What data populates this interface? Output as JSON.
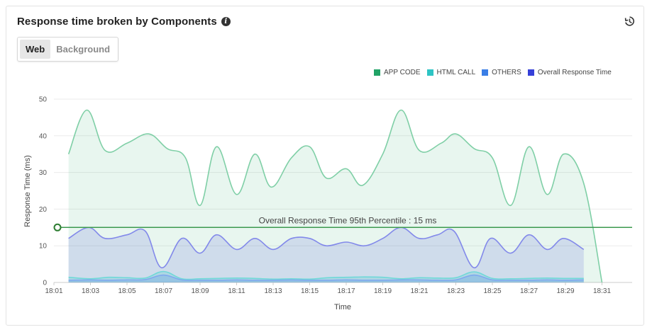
{
  "header": {
    "title": "Response time broken by Components",
    "info_icon": "info-icon",
    "history_icon": "history-icon"
  },
  "tabs": [
    {
      "label": "Web",
      "active": true
    },
    {
      "label": "Background",
      "active": false
    }
  ],
  "colors": {
    "app_code": "#21a366",
    "html_call": "#2ec4c4",
    "others": "#3a7ee6",
    "overall": "#3640d8",
    "percentile_line": "#3c9a4f"
  },
  "chart_data": {
    "type": "area",
    "title": "",
    "xlabel": "Time",
    "ylabel": "Response Time (ms)",
    "ylim": [
      0,
      50
    ],
    "yticks": [
      0,
      10,
      20,
      30,
      40,
      50
    ],
    "xticks": [
      "18:01",
      "18:03",
      "18:05",
      "18:07",
      "18:09",
      "18:11",
      "18:13",
      "18:15",
      "18:17",
      "18:19",
      "18:21",
      "18:23",
      "18:25",
      "18:27",
      "18:29",
      "18:31"
    ],
    "xlim_minutes": [
      1,
      31
    ],
    "grid": true,
    "legend": {
      "position": "top-right",
      "entries": [
        "APP CODE",
        "HTML CALL",
        "OTHERS",
        "Overall Response Time"
      ]
    },
    "series": [
      {
        "name": "APP CODE",
        "color": "#21a366",
        "x": [
          1.8,
          2.8,
          3.8,
          5.0,
          6.2,
          7.2,
          8.2,
          9.0,
          9.9,
          11.0,
          12.0,
          12.9,
          14.0,
          15.0,
          15.9,
          17.0,
          17.9,
          19.0,
          20.0,
          21.0,
          22.2,
          23.0,
          24.0,
          25.0,
          26.0,
          27.0,
          28.0,
          28.9,
          30.0,
          31.0
        ],
        "values": [
          35,
          47,
          36,
          38,
          40.5,
          36.5,
          34,
          21,
          37,
          24,
          35,
          26,
          34,
          37,
          28.5,
          31,
          26.5,
          35,
          47,
          36,
          38,
          40.5,
          36.5,
          34,
          21,
          37,
          24,
          35,
          27,
          0
        ]
      },
      {
        "name": "Overall Response Time",
        "color": "#3640d8",
        "x": [
          1.8,
          2.9,
          3.8,
          5.0,
          6.0,
          6.9,
          8.0,
          9.0,
          9.9,
          11.0,
          12.0,
          13.0,
          14.0,
          15.0,
          15.9,
          17.0,
          18.0,
          19.0,
          20.0,
          21.0,
          22.0,
          22.9,
          24.0,
          24.9,
          26.0,
          27.0,
          28.0,
          28.9,
          30.0
        ],
        "values": [
          12,
          15,
          12,
          13,
          14,
          4,
          12,
          8,
          13,
          9,
          12,
          9,
          12,
          12,
          10,
          11,
          10,
          12,
          15,
          12,
          13,
          14,
          4,
          12,
          8,
          13,
          9,
          12,
          9
        ]
      },
      {
        "name": "HTML CALL",
        "color": "#2ec4c4",
        "x": [
          1.8,
          3.0,
          4.0,
          5.0,
          6.0,
          7.0,
          8.0,
          9.0,
          10.0,
          11.0,
          12.0,
          13.0,
          14.0,
          15.0,
          16.0,
          17.0,
          18.0,
          19.0,
          20.0,
          21.0,
          22.0,
          23.0,
          24.0,
          25.0,
          26.0,
          27.0,
          28.0,
          29.0,
          30.0
        ],
        "values": [
          1.4,
          1.0,
          1.4,
          1.3,
          1.2,
          3.0,
          1.0,
          1.0,
          1.1,
          1.2,
          1.1,
          0.9,
          1.0,
          0.9,
          1.3,
          1.4,
          1.5,
          1.4,
          1.0,
          1.3,
          1.2,
          1.3,
          2.9,
          1.1,
          1.0,
          1.1,
          1.2,
          1.1,
          1.1
        ]
      },
      {
        "name": "OTHERS",
        "color": "#3a7ee6",
        "x": [
          1.8,
          3.0,
          4.0,
          5.0,
          6.0,
          7.0,
          8.0,
          9.0,
          10.0,
          11.0,
          12.0,
          13.0,
          14.0,
          15.0,
          16.0,
          17.0,
          18.0,
          19.0,
          20.0,
          21.0,
          22.0,
          23.0,
          24.0,
          25.0,
          26.0,
          27.0,
          28.0,
          29.0,
          30.0
        ],
        "values": [
          0.6,
          0.7,
          0.6,
          0.7,
          0.8,
          2.0,
          0.7,
          0.6,
          0.6,
          0.7,
          0.6,
          0.6,
          0.7,
          0.6,
          0.6,
          0.7,
          0.6,
          0.6,
          0.7,
          0.7,
          0.6,
          0.7,
          2.0,
          0.7,
          0.6,
          0.6,
          0.7,
          0.6,
          0.7
        ]
      }
    ],
    "annotations": [
      {
        "type": "hline",
        "y": 15,
        "label": "Overall Response Time 95th Percentile : 15 ms",
        "color": "#3c9a4f"
      }
    ]
  }
}
